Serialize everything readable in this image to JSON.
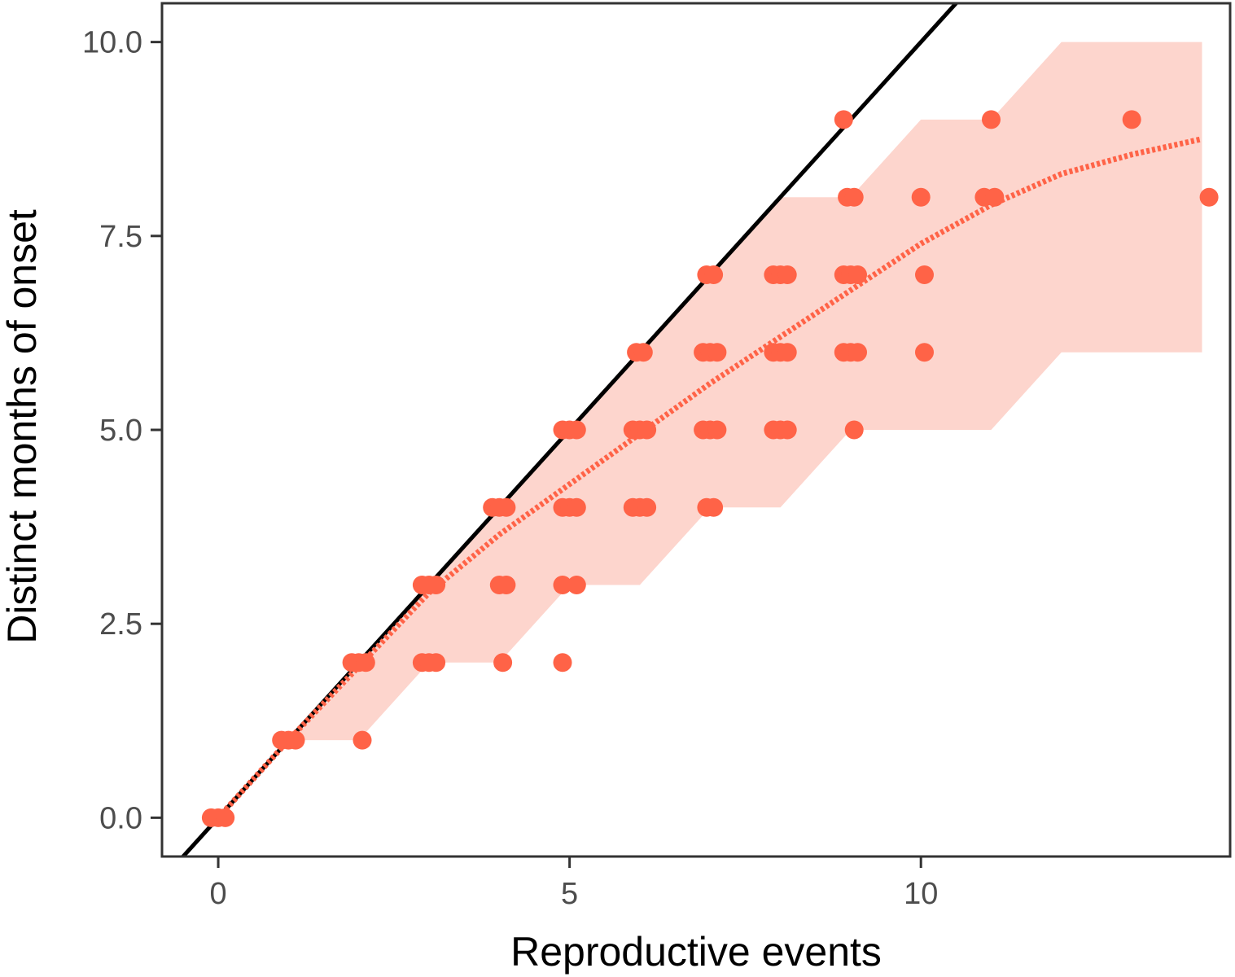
{
  "chart_data": {
    "type": "scatter",
    "title": "",
    "xlabel": "Reproductive events",
    "ylabel": "Distinct months of onset",
    "xlim": [
      -0.8,
      14.4
    ],
    "ylim": [
      -0.5,
      10.5
    ],
    "xticks": [
      0,
      5,
      10
    ],
    "xtick_labels": [
      "0",
      "5",
      "10"
    ],
    "yticks": [
      0,
      2.5,
      5,
      7.5,
      10
    ],
    "ytick_labels": [
      "0.0",
      "2.5",
      "5.0",
      "7.5",
      "10.0"
    ],
    "grid": false,
    "legend": "none",
    "colors": {
      "points": "#ff6347",
      "ribbon": "#fdd5cd",
      "trend": "#ff6347",
      "identity_line": "#000000",
      "axes": "#333333"
    },
    "identity_line": {
      "slope": 1,
      "intercept": 0
    },
    "ribbon": {
      "x": [
        0,
        1,
        2,
        3,
        4,
        5,
        6,
        7,
        8,
        9,
        10,
        11,
        12,
        14
      ],
      "lower": [
        0,
        1,
        1,
        2,
        2,
        3,
        3,
        4,
        4,
        5,
        5,
        5,
        6,
        6
      ],
      "upper": [
        0,
        1,
        2,
        3,
        4,
        5,
        6,
        7,
        8,
        8,
        9,
        9,
        10,
        10
      ]
    },
    "trend": {
      "x": [
        0,
        1,
        2,
        3,
        4,
        5,
        6,
        7,
        8,
        9,
        10,
        11,
        12,
        13,
        14
      ],
      "y": [
        0,
        1.0,
        1.95,
        2.9,
        3.65,
        4.3,
        4.95,
        5.6,
        6.2,
        6.8,
        7.4,
        7.9,
        8.3,
        8.55,
        8.75
      ]
    },
    "points": [
      {
        "x": -0.1,
        "y": 0
      },
      {
        "x": 0.0,
        "y": 0
      },
      {
        "x": 0.1,
        "y": 0
      },
      {
        "x": 0.9,
        "y": 1
      },
      {
        "x": 1.0,
        "y": 1
      },
      {
        "x": 1.1,
        "y": 1
      },
      {
        "x": 2.05,
        "y": 1
      },
      {
        "x": 1.9,
        "y": 2
      },
      {
        "x": 2.0,
        "y": 2
      },
      {
        "x": 2.1,
        "y": 2
      },
      {
        "x": 2.9,
        "y": 2
      },
      {
        "x": 3.0,
        "y": 2
      },
      {
        "x": 3.1,
        "y": 2
      },
      {
        "x": 4.05,
        "y": 2
      },
      {
        "x": 4.9,
        "y": 2
      },
      {
        "x": 2.9,
        "y": 3
      },
      {
        "x": 3.0,
        "y": 3
      },
      {
        "x": 3.1,
        "y": 3
      },
      {
        "x": 4.0,
        "y": 3
      },
      {
        "x": 4.1,
        "y": 3
      },
      {
        "x": 4.9,
        "y": 3
      },
      {
        "x": 5.1,
        "y": 3
      },
      {
        "x": 3.9,
        "y": 4
      },
      {
        "x": 4.0,
        "y": 4
      },
      {
        "x": 4.1,
        "y": 4
      },
      {
        "x": 4.9,
        "y": 4
      },
      {
        "x": 5.0,
        "y": 4
      },
      {
        "x": 5.1,
        "y": 4
      },
      {
        "x": 5.9,
        "y": 4
      },
      {
        "x": 6.0,
        "y": 4
      },
      {
        "x": 6.1,
        "y": 4
      },
      {
        "x": 6.95,
        "y": 4
      },
      {
        "x": 7.05,
        "y": 4
      },
      {
        "x": 4.9,
        "y": 5
      },
      {
        "x": 5.0,
        "y": 5
      },
      {
        "x": 5.1,
        "y": 5
      },
      {
        "x": 5.9,
        "y": 5
      },
      {
        "x": 6.0,
        "y": 5
      },
      {
        "x": 6.1,
        "y": 5
      },
      {
        "x": 6.9,
        "y": 5
      },
      {
        "x": 7.0,
        "y": 5
      },
      {
        "x": 7.1,
        "y": 5
      },
      {
        "x": 7.9,
        "y": 5
      },
      {
        "x": 8.0,
        "y": 5
      },
      {
        "x": 8.1,
        "y": 5
      },
      {
        "x": 9.05,
        "y": 5
      },
      {
        "x": 5.95,
        "y": 6
      },
      {
        "x": 6.05,
        "y": 6
      },
      {
        "x": 6.9,
        "y": 6
      },
      {
        "x": 7.0,
        "y": 6
      },
      {
        "x": 7.1,
        "y": 6
      },
      {
        "x": 7.9,
        "y": 6
      },
      {
        "x": 8.0,
        "y": 6
      },
      {
        "x": 8.1,
        "y": 6
      },
      {
        "x": 8.9,
        "y": 6
      },
      {
        "x": 9.0,
        "y": 6
      },
      {
        "x": 9.1,
        "y": 6
      },
      {
        "x": 10.05,
        "y": 6
      },
      {
        "x": 6.95,
        "y": 7
      },
      {
        "x": 7.05,
        "y": 7
      },
      {
        "x": 7.9,
        "y": 7
      },
      {
        "x": 8.0,
        "y": 7
      },
      {
        "x": 8.1,
        "y": 7
      },
      {
        "x": 8.9,
        "y": 7
      },
      {
        "x": 9.0,
        "y": 7
      },
      {
        "x": 9.1,
        "y": 7
      },
      {
        "x": 10.05,
        "y": 7
      },
      {
        "x": 8.95,
        "y": 8
      },
      {
        "x": 9.05,
        "y": 8
      },
      {
        "x": 10.0,
        "y": 8
      },
      {
        "x": 10.9,
        "y": 8
      },
      {
        "x": 11.05,
        "y": 8
      },
      {
        "x": 14.1,
        "y": 8
      },
      {
        "x": 8.9,
        "y": 9
      },
      {
        "x": 11.0,
        "y": 9
      },
      {
        "x": 13.0,
        "y": 9
      }
    ]
  }
}
